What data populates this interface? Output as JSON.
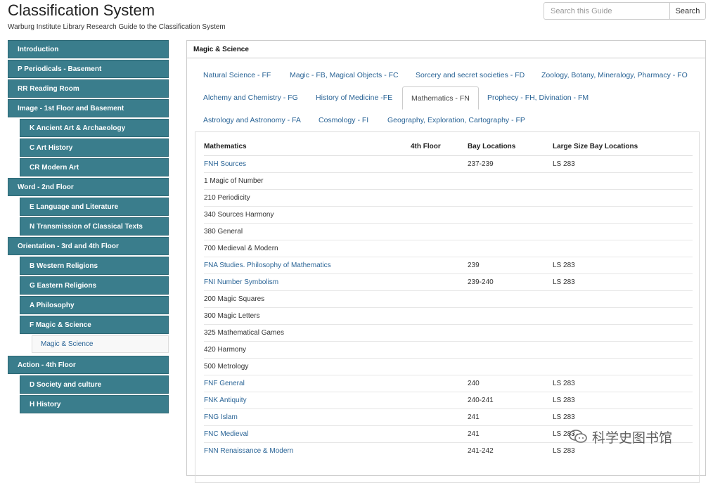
{
  "header": {
    "title": "Classification System",
    "subtitle": "Warburg Institute Library Research Guide to the Classification System"
  },
  "search": {
    "placeholder": "Search this Guide",
    "button": "Search"
  },
  "sidebar": {
    "items": [
      {
        "label": "Introduction",
        "level": "top"
      },
      {
        "label": "P Periodicals - Basement",
        "level": "top"
      },
      {
        "label": "RR Reading Room",
        "level": "top"
      },
      {
        "label": "Image - 1st Floor and Basement",
        "level": "top"
      },
      {
        "label": "K Ancient Art & Archaeology",
        "level": "sub"
      },
      {
        "label": "C Art History",
        "level": "sub"
      },
      {
        "label": "CR Modern Art",
        "level": "sub"
      },
      {
        "label": "Word - 2nd Floor",
        "level": "top"
      },
      {
        "label": "E Language and Literature",
        "level": "sub"
      },
      {
        "label": "N Transmission of Classical Texts",
        "level": "sub"
      },
      {
        "label": "Orientation - 3rd and 4th Floor",
        "level": "top"
      },
      {
        "label": "B Western Religions",
        "level": "sub"
      },
      {
        "label": "G Eastern Religions",
        "level": "sub"
      },
      {
        "label": "A Philosophy",
        "level": "sub"
      },
      {
        "label": "F Magic & Science",
        "level": "sub"
      },
      {
        "label": "Magic & Science",
        "level": "active-sub"
      },
      {
        "label": "Action - 4th Floor",
        "level": "top"
      },
      {
        "label": "D Society and culture",
        "level": "sub"
      },
      {
        "label": "H History",
        "level": "sub"
      }
    ]
  },
  "panel": {
    "heading": "Magic & Science",
    "tabs": [
      [
        "Natural Science - FF",
        "Magic - FB, Magical Objects - FC",
        "Sorcery and secret societies - FD",
        "Zoology, Botany, Mineralogy, Pharmacy - FO"
      ],
      [
        "Alchemy and Chemistry - FG",
        "History of Medicine -FE",
        "Mathematics - FN",
        "Prophecy - FH, Divination - FM"
      ],
      [
        "Astrology and Astronomy - FA",
        "Cosmology - FI",
        "Geography, Exploration, Cartography - FP"
      ]
    ],
    "active_tab": "Mathematics - FN",
    "table": {
      "headers": [
        "Mathematics",
        "4th Floor",
        "Bay Locations",
        "Large Size Bay Locations"
      ],
      "rows": [
        {
          "c1": "FNH Sources",
          "c2": "",
          "c3": " 237-239",
          "c4": "LS 283",
          "link": true
        },
        {
          "c1": "1 Magic of Number",
          "c2": "",
          "c3": "",
          "c4": "",
          "link": false
        },
        {
          "c1": "210 Periodicity",
          "c2": "",
          "c3": "",
          "c4": "",
          "link": false
        },
        {
          "c1": "340 Sources Harmony",
          "c2": "",
          "c3": "",
          "c4": "",
          "link": false
        },
        {
          "c1": "380 General",
          "c2": "",
          "c3": "",
          "c4": "",
          "link": false
        },
        {
          "c1": "700 Medieval & Modern",
          "c2": "",
          "c3": "",
          "c4": "",
          "link": false
        },
        {
          "c1": "FNA Studies. Philosophy of Mathematics",
          "c2": "",
          "c3": "239",
          "c4": "LS 283",
          "link": true
        },
        {
          "c1": "FNI Number Symbolism",
          "c2": "",
          "c3": "239-240",
          "c4": "LS 283",
          "link": true
        },
        {
          "c1": "200 Magic Squares",
          "c2": "",
          "c3": "",
          "c4": "",
          "link": false
        },
        {
          "c1": "300 Magic Letters",
          "c2": "",
          "c3": "",
          "c4": "",
          "link": false
        },
        {
          "c1": "325 Mathematical Games",
          "c2": "",
          "c3": "",
          "c4": "",
          "link": false
        },
        {
          "c1": "420 Harmony",
          "c2": "",
          "c3": "",
          "c4": "",
          "link": false
        },
        {
          "c1": "500 Metrology",
          "c2": "",
          "c3": "",
          "c4": "",
          "link": false
        },
        {
          "c1": "FNF General",
          "c2": "",
          "c3": "240",
          "c4": "LS 283",
          "link": true
        },
        {
          "c1": "FNK Antiquity",
          "c2": "",
          "c3": "240-241",
          "c4": "LS 283",
          "link": true
        },
        {
          "c1": "FNG Islam",
          "c2": "",
          "c3": "241",
          "c4": "LS 283",
          "link": true
        },
        {
          "c1": "FNC Medieval",
          "c2": "",
          "c3": "241",
          "c4": "LS 283",
          "link": true
        },
        {
          "c1": "FNN Renaissance & Modern",
          "c2": "",
          "c3": "241-242",
          "c4": "LS 283",
          "link": true
        }
      ]
    }
  },
  "watermark": {
    "text": "科学史图书馆",
    "icon": "wechat-icon"
  },
  "colors": {
    "nav_bg": "#3a7d8c",
    "link": "#2a6496"
  }
}
